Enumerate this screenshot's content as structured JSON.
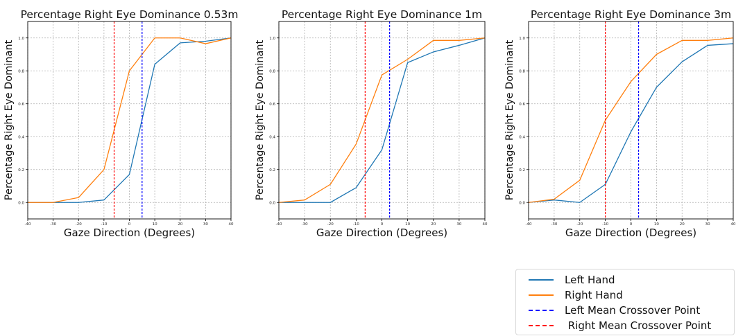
{
  "chart_data": [
    {
      "type": "line",
      "title": "Percentage Right Eye Dominance 0.53m",
      "xlabel": "Gaze Direction (Degrees)",
      "ylabel": "Percentage Right Eye Dominant",
      "xlim": [
        -40,
        40
      ],
      "ylim": [
        -0.1,
        1.1
      ],
      "xticks": [
        -40,
        -30,
        -20,
        -10,
        0,
        10,
        20,
        30,
        40
      ],
      "yticks": [
        0.0,
        0.2,
        0.4,
        0.6,
        0.8,
        1.0
      ],
      "grid": true,
      "series": [
        {
          "name": "Left Hand",
          "color": "#1f77b4",
          "x": [
            -40,
            -30,
            -20,
            -10,
            0,
            10,
            20,
            30,
            40
          ],
          "values": [
            0.0,
            0.0,
            0.0,
            0.015,
            0.17,
            0.84,
            0.97,
            0.98,
            1.0
          ]
        },
        {
          "name": "Right Hand",
          "color": "#ff7f0e",
          "x": [
            -40,
            -30,
            -20,
            -10,
            0,
            10,
            20,
            30,
            40
          ],
          "values": [
            0.0,
            0.0,
            0.03,
            0.2,
            0.8,
            1.0,
            1.0,
            0.965,
            1.0
          ]
        }
      ],
      "vlines": [
        {
          "name": "Left Mean Crossover Point",
          "x": 5,
          "color": "#0000ff"
        },
        {
          "name": "Right Mean Crossover Point",
          "x": -6,
          "color": "#ff0000"
        }
      ]
    },
    {
      "type": "line",
      "title": "Percentage Right Eye Dominance 1m",
      "xlabel": "Gaze Direction (Degrees)",
      "ylabel": "Percentage Right Eye Dominant",
      "xlim": [
        -40,
        40
      ],
      "ylim": [
        -0.1,
        1.1
      ],
      "xticks": [
        -40,
        -30,
        -20,
        -10,
        0,
        10,
        20,
        30,
        40
      ],
      "yticks": [
        0.0,
        0.2,
        0.4,
        0.6,
        0.8,
        1.0
      ],
      "grid": true,
      "series": [
        {
          "name": "Left Hand",
          "color": "#1f77b4",
          "x": [
            -40,
            -30,
            -20,
            -10,
            0,
            10,
            20,
            30,
            40
          ],
          "values": [
            0.0,
            0.0,
            0.0,
            0.09,
            0.32,
            0.85,
            0.915,
            0.955,
            1.0
          ]
        },
        {
          "name": "Right Hand",
          "color": "#ff7f0e",
          "x": [
            -40,
            -30,
            -20,
            -10,
            0,
            10,
            20,
            30,
            40
          ],
          "values": [
            0.0,
            0.015,
            0.11,
            0.355,
            0.775,
            0.87,
            0.985,
            0.985,
            1.0
          ]
        }
      ],
      "vlines": [
        {
          "name": "Left Mean Crossover Point",
          "x": 3,
          "color": "#0000ff"
        },
        {
          "name": "Right Mean Crossover Point",
          "x": -6.5,
          "color": "#ff0000"
        }
      ]
    },
    {
      "type": "line",
      "title": "Percentage Right Eye Dominance 3m",
      "xlabel": "Gaze Direction (Degrees)",
      "ylabel": "Percentage Right Eye Dominant",
      "xlim": [
        -40,
        40
      ],
      "ylim": [
        -0.1,
        1.1
      ],
      "xticks": [
        -40,
        -30,
        -20,
        -10,
        0,
        10,
        20,
        30,
        40
      ],
      "yticks": [
        0.0,
        0.2,
        0.4,
        0.6,
        0.8,
        1.0
      ],
      "grid": true,
      "series": [
        {
          "name": "Left Hand",
          "color": "#1f77b4",
          "x": [
            -40,
            -30,
            -20,
            -10,
            0,
            10,
            20,
            30,
            40
          ],
          "values": [
            0.0,
            0.015,
            0.0,
            0.11,
            0.43,
            0.7,
            0.855,
            0.955,
            0.965
          ]
        },
        {
          "name": "Right Hand",
          "color": "#ff7f0e",
          "x": [
            -40,
            -30,
            -20,
            -10,
            0,
            10,
            20,
            30,
            40
          ],
          "values": [
            0.0,
            0.02,
            0.135,
            0.5,
            0.735,
            0.9,
            0.985,
            0.985,
            1.0
          ]
        }
      ],
      "vlines": [
        {
          "name": "Left Mean Crossover Point",
          "x": 3,
          "color": "#0000ff"
        },
        {
          "name": "Right Mean Crossover Point",
          "x": -10,
          "color": "#ff0000"
        }
      ]
    }
  ],
  "legend": {
    "placement": "bottom-right",
    "items": [
      {
        "label": "Left Hand",
        "color": "#1f77b4",
        "style": "solid"
      },
      {
        "label": "Right Hand",
        "color": "#ff7f0e",
        "style": "solid"
      },
      {
        "label": "Left Mean Crossover Point",
        "color": "#0000ff",
        "style": "dashed"
      },
      {
        "label": " Right Mean Crossover Point",
        "color": "#ff0000",
        "style": "dashed"
      }
    ]
  }
}
